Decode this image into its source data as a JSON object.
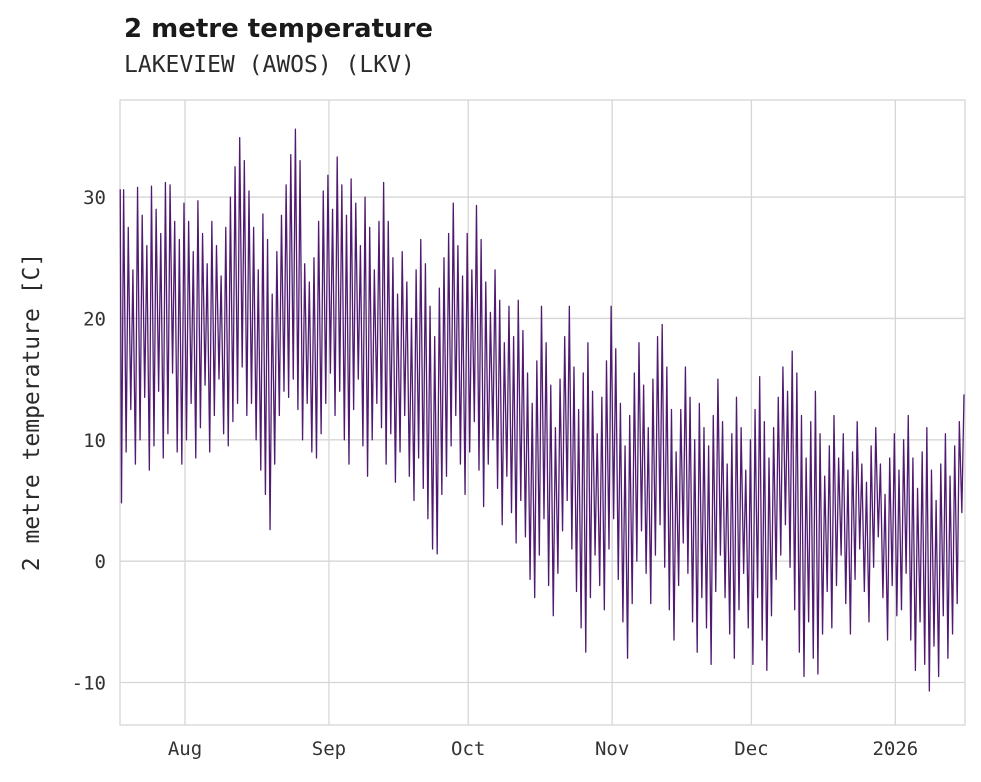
{
  "chart_data": {
    "type": "line",
    "title": "2 metre temperature",
    "subtitle": "LAKEVIEW (AWOS) (LKV)",
    "xlabel": "",
    "ylabel": "2 metre temperature [C]",
    "y_ticks": [
      -10,
      0,
      10,
      20,
      30
    ],
    "ylim": [
      -13.5,
      38
    ],
    "x_ticks": [
      {
        "label": "Aug",
        "day": 14
      },
      {
        "label": "Sep",
        "day": 45
      },
      {
        "label": "Oct",
        "day": 75
      },
      {
        "label": "Nov",
        "day": 106
      },
      {
        "label": "Dec",
        "day": 136
      },
      {
        "label": "2026",
        "day": 167
      }
    ],
    "x_range_note": "daily data from mid-July to mid-January, one min/max pair per day",
    "grid": true,
    "grid_color": "#d6d6d6",
    "line_color": "#4f1a70",
    "background_color": "#ffffff",
    "lead_point": 30.6,
    "daily_min": [
      4.8,
      9.0,
      12.5,
      8.0,
      10.0,
      13.5,
      7.5,
      9.5,
      14.0,
      8.5,
      10.5,
      15.5,
      9.0,
      8.0,
      10.0,
      13.0,
      8.5,
      11.0,
      14.5,
      9.0,
      12.0,
      15.0,
      10.5,
      9.5,
      11.5,
      13.0,
      16.0,
      12.0,
      13.0,
      10.0,
      7.5,
      5.5,
      2.6,
      8.0,
      12.0,
      14.0,
      13.5,
      15.0,
      12.5,
      10.0,
      13.0,
      9.0,
      8.5,
      10.5,
      13.0,
      15.5,
      12.0,
      14.0,
      10.0,
      8.0,
      12.5,
      15.0,
      9.5,
      7.0,
      10.0,
      13.0,
      11.0,
      8.0,
      10.5,
      6.5,
      9.0,
      12.0,
      7.0,
      5.0,
      8.5,
      6.0,
      3.5,
      1.0,
      0.6,
      5.5,
      7.0,
      9.5,
      12.0,
      8.0,
      5.5,
      9.0,
      11.5,
      7.5,
      4.5,
      8.0,
      10.0,
      6.0,
      3.0,
      7.0,
      4.0,
      1.5,
      5.0,
      2.0,
      -1.5,
      -3.0,
      0.5,
      3.5,
      -2.0,
      -4.5,
      -1.0,
      2.5,
      5.0,
      1.0,
      -2.5,
      -5.5,
      -7.5,
      -3.0,
      0.5,
      -2.0,
      -4.0,
      1.0,
      3.5,
      -1.5,
      -5.0,
      -8.0,
      -3.5,
      0.0,
      2.5,
      -1.0,
      -3.5,
      0.5,
      3.0,
      -0.5,
      -4.0,
      -6.5,
      -2.0,
      1.5,
      -1.0,
      -5.0,
      -7.5,
      -3.0,
      -5.5,
      -8.5,
      -2.5,
      0.5,
      -3.0,
      -6.0,
      -8.0,
      -4.0,
      -1.0,
      -5.5,
      -8.5,
      -3.0,
      -6.5,
      -9.0,
      -4.5,
      -1.5,
      0.5,
      3.0,
      -0.5,
      -4.0,
      -7.5,
      -9.5,
      -5.0,
      -8.0,
      -9.3,
      -6.0,
      -2.5,
      -5.5,
      -2.0,
      0.5,
      -3.5,
      -6.0,
      -1.5,
      1.0,
      -2.5,
      -5.0,
      -0.5,
      2.0,
      -3.0,
      -6.5,
      -2.0,
      -4.5,
      -4.0,
      -1.0,
      -6.5,
      -9.0,
      -5.0,
      -8.5,
      -10.7,
      -7.0,
      -9.5,
      -4.5,
      -8.0,
      -6.0,
      -3.5,
      4.0
    ],
    "daily_max": [
      30.6,
      27.5,
      24.0,
      30.8,
      28.5,
      26.0,
      30.9,
      29.0,
      27.0,
      31.2,
      31.0,
      28.0,
      26.5,
      29.5,
      28.0,
      25.5,
      29.7,
      27.0,
      24.5,
      28.0,
      26.0,
      23.5,
      27.5,
      30.0,
      32.5,
      34.9,
      33.0,
      30.5,
      27.5,
      24.0,
      28.6,
      26.5,
      22.0,
      25.5,
      28.5,
      31.0,
      33.5,
      35.6,
      33.0,
      24.5,
      23.0,
      25.0,
      28.0,
      30.5,
      31.8,
      29.0,
      33.3,
      31.0,
      28.5,
      31.5,
      29.5,
      26.0,
      30.0,
      27.5,
      24.0,
      28.0,
      31.2,
      28.0,
      25.0,
      22.0,
      25.5,
      23.0,
      20.0,
      24.0,
      26.5,
      24.5,
      21.0,
      18.5,
      22.5,
      25.0,
      27.0,
      29.5,
      26.0,
      23.5,
      27.0,
      24.0,
      29.3,
      26.5,
      23.0,
      20.5,
      24.0,
      21.5,
      18.0,
      21.0,
      18.5,
      21.5,
      19.0,
      15.5,
      13.0,
      16.5,
      21.0,
      18.0,
      14.5,
      11.0,
      15.0,
      18.5,
      21.0,
      16.0,
      12.5,
      15.5,
      18.0,
      14.0,
      10.5,
      13.5,
      16.5,
      21.0,
      17.5,
      13.0,
      9.5,
      12.0,
      15.5,
      18.0,
      14.5,
      11.0,
      15.0,
      18.5,
      19.5,
      16.0,
      12.5,
      9.0,
      12.5,
      16.0,
      13.5,
      10.0,
      13.0,
      11.0,
      9.5,
      12.0,
      15.0,
      11.5,
      8.0,
      10.5,
      13.5,
      11.0,
      7.5,
      10.0,
      12.5,
      15.2,
      11.5,
      8.5,
      11.0,
      13.5,
      16.0,
      14.0,
      17.3,
      15.5,
      12.0,
      8.5,
      11.5,
      14.0,
      10.5,
      7.0,
      9.5,
      12.0,
      8.5,
      10.5,
      7.5,
      9.0,
      11.5,
      8.0,
      6.5,
      9.5,
      11.0,
      8.0,
      5.5,
      8.5,
      10.5,
      7.5,
      10.0,
      12.0,
      8.5,
      6.0,
      9.0,
      11.0,
      7.5,
      5.0,
      8.0,
      10.5,
      7.0,
      9.5,
      11.5,
      13.7
    ]
  }
}
